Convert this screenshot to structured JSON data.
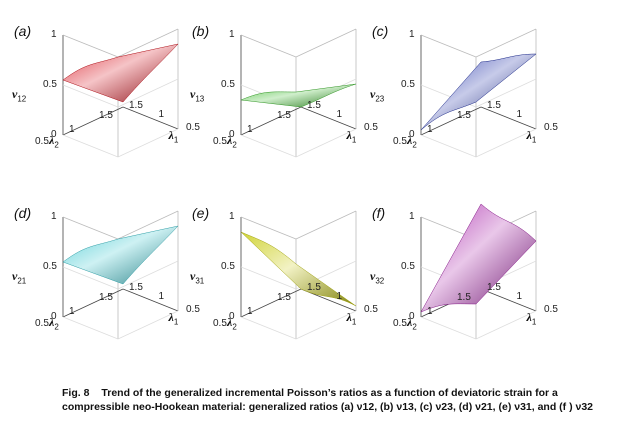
{
  "figure": {
    "panels": [
      {
        "label": "(a)",
        "ylabel_sym": "ν",
        "ylabel_sub": "12",
        "z_ticks": [
          "0",
          "0.5",
          "1"
        ],
        "l2_ticks": [
          "0.5",
          "1",
          "1.5"
        ],
        "l1_ticks": [
          "0.5",
          "1",
          "1.5"
        ],
        "x_sym": "λ",
        "x_sub": "1",
        "y_sym": "λ",
        "y_sub": "2",
        "color": "#d8141e",
        "shape": "ridge-left-high"
      },
      {
        "label": "(b)",
        "ylabel_sym": "ν",
        "ylabel_sub": "13",
        "z_ticks": [
          "0",
          "0.5",
          "1"
        ],
        "l2_ticks": [
          "0.5",
          "1",
          "1.5"
        ],
        "l1_ticks": [
          "0.5",
          "1",
          "1.5"
        ],
        "x_sym": "λ",
        "x_sub": "1",
        "y_sym": "λ",
        "y_sub": "2",
        "color": "#3dbb2e",
        "shape": "arch"
      },
      {
        "label": "(c)",
        "ylabel_sym": "ν",
        "ylabel_sub": "23",
        "z_ticks": [
          "0",
          "0.5",
          "1"
        ],
        "l2_ticks": [
          "0.5",
          "1",
          "1.5"
        ],
        "l1_ticks": [
          "0.5",
          "1",
          "1.5"
        ],
        "x_sym": "λ",
        "x_sub": "1",
        "y_sym": "λ",
        "y_sub": "2",
        "color": "#1f2fa8",
        "shape": "rise-right"
      },
      {
        "label": "(d)",
        "ylabel_sym": "ν",
        "ylabel_sub": "21",
        "z_ticks": [
          "0",
          "0.5",
          "1"
        ],
        "l2_ticks": [
          "0.5",
          "1",
          "1.5"
        ],
        "l1_ticks": [
          "0.5",
          "1",
          "1.5"
        ],
        "x_sym": "λ",
        "x_sub": "1",
        "y_sym": "λ",
        "y_sub": "2",
        "color": "#3cc6cf",
        "shape": "ridge-left-high"
      },
      {
        "label": "(e)",
        "ylabel_sym": "ν",
        "ylabel_sub": "31",
        "z_ticks": [
          "0",
          "0.5",
          "1"
        ],
        "l2_ticks": [
          "0.5",
          "1",
          "1.5"
        ],
        "l1_ticks": [
          "0.5",
          "1",
          "1.5"
        ],
        "x_sym": "λ",
        "x_sub": "1",
        "y_sym": "λ",
        "y_sub": "2",
        "color": "#c9cc16",
        "shape": "descend"
      },
      {
        "label": "(f)",
        "ylabel_sym": "ν",
        "ylabel_sub": "32",
        "z_ticks": [
          "0",
          "0.5",
          "1"
        ],
        "l2_ticks": [
          "0.5",
          "1",
          "1.5"
        ],
        "l1_ticks": [
          "0.5",
          "1",
          "1.5"
        ],
        "x_sym": "λ",
        "x_sub": "1",
        "y_sym": "λ",
        "y_sub": "2",
        "color": "#a51ea8",
        "shape": "ascend"
      }
    ]
  },
  "caption": {
    "number": "Fig. 8",
    "text": "Trend of the generalized incremental Poisson’s ratios as a function of deviatoric strain for a compressible neo-Hookean material: generalized ratios (a) ν12, (b) ν13, (c) ν23, (d) ν21, (e) ν31, and (f ) ν32"
  }
}
